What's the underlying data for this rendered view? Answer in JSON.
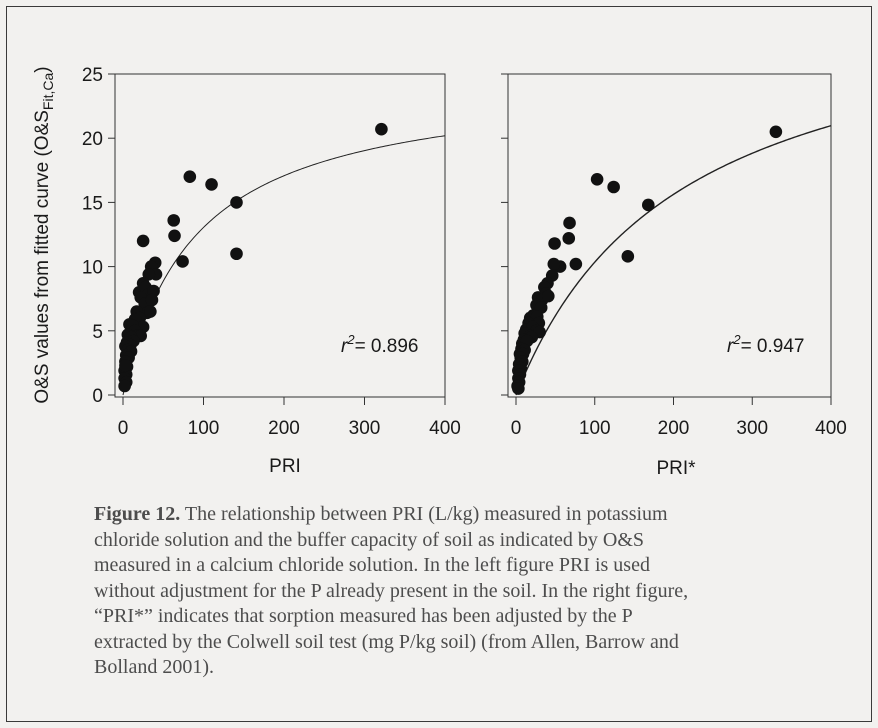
{
  "chart_data": [
    {
      "type": "scatter",
      "ylabel_main": "O&S values from fitted curve (O&S",
      "ylabel_sub": "Fit,Ca",
      "ylabel_close": ")",
      "xlabel": "PRI",
      "xlim": [
        0,
        400
      ],
      "ylim": [
        0,
        25
      ],
      "x_ticks": [
        "0",
        "100",
        "200",
        "300",
        "400"
      ],
      "y_ticks": [
        "0",
        "5",
        "10",
        "15",
        "20",
        "25"
      ],
      "r2_label": "= 0.896",
      "r2_symbol": "r",
      "r2_sup": "2",
      "points": [
        [
          321,
          20.7
        ],
        [
          83,
          17
        ],
        [
          110,
          16.4
        ],
        [
          141,
          15
        ],
        [
          63,
          13.6
        ],
        [
          64,
          12.4
        ],
        [
          25,
          12
        ],
        [
          74,
          10.4
        ],
        [
          141,
          11
        ],
        [
          40,
          10.3
        ],
        [
          35,
          10
        ],
        [
          41,
          9.4
        ],
        [
          32,
          9.4
        ],
        [
          25,
          8.7
        ],
        [
          20,
          8
        ],
        [
          28,
          8.4
        ],
        [
          31,
          7.8
        ],
        [
          38,
          8.1
        ],
        [
          22,
          7.6
        ],
        [
          27,
          7.1
        ],
        [
          36,
          7.4
        ],
        [
          30,
          6.4
        ],
        [
          34,
          6.5
        ],
        [
          17,
          6.5
        ],
        [
          20,
          6
        ],
        [
          15,
          5.9
        ],
        [
          25,
          5.3
        ],
        [
          8,
          5.5
        ],
        [
          12,
          5.4
        ],
        [
          15,
          5
        ],
        [
          17,
          4.6
        ],
        [
          22,
          4.6
        ],
        [
          6,
          4.7
        ],
        [
          10,
          4.5
        ],
        [
          13,
          4.2
        ],
        [
          5,
          4.1
        ],
        [
          9,
          3.9
        ],
        [
          3,
          3.8
        ],
        [
          6,
          3.5
        ],
        [
          10,
          3.4
        ],
        [
          4,
          3.1
        ],
        [
          7,
          2.9
        ],
        [
          3,
          2.6
        ],
        [
          5,
          2.2
        ],
        [
          2,
          1.9
        ],
        [
          4,
          1.6
        ],
        [
          2,
          1.3
        ],
        [
          4,
          1.0
        ],
        [
          2,
          0.7
        ],
        [
          3,
          2.3
        ]
      ],
      "curve": {
        "type": "langmuir",
        "a": 24.7,
        "b": 0.0112
      }
    },
    {
      "type": "scatter",
      "xlabel": "PRI*",
      "xlim": [
        0,
        400
      ],
      "ylim": [
        0,
        25
      ],
      "x_ticks": [
        "0",
        "100",
        "200",
        "300",
        "400"
      ],
      "r2_label": "= 0.947",
      "r2_symbol": "r",
      "r2_sup": "2",
      "points": [
        [
          330,
          20.5
        ],
        [
          103,
          16.8
        ],
        [
          124,
          16.2
        ],
        [
          168,
          14.8
        ],
        [
          68,
          13.4
        ],
        [
          67,
          12.2
        ],
        [
          49,
          11.8
        ],
        [
          142,
          10.8
        ],
        [
          76,
          10.2
        ],
        [
          56,
          10
        ],
        [
          48,
          10.2
        ],
        [
          46,
          9.3
        ],
        [
          40,
          8.7
        ],
        [
          36,
          8.4
        ],
        [
          38,
          7.9
        ],
        [
          28,
          7.6
        ],
        [
          33,
          7.4
        ],
        [
          41,
          7.7
        ],
        [
          26,
          7
        ],
        [
          32,
          6.8
        ],
        [
          22,
          6.2
        ],
        [
          18,
          6
        ],
        [
          27,
          6.1
        ],
        [
          29,
          5.6
        ],
        [
          16,
          5.6
        ],
        [
          13,
          5.1
        ],
        [
          21,
          5.3
        ],
        [
          26,
          5
        ],
        [
          11,
          4.8
        ],
        [
          18,
          4.6
        ],
        [
          30,
          4.9
        ],
        [
          10,
          4.3
        ],
        [
          20,
          4.5
        ],
        [
          8,
          4
        ],
        [
          14,
          4.2
        ],
        [
          7,
          3.6
        ],
        [
          11,
          3.5
        ],
        [
          5,
          3.2
        ],
        [
          9,
          3.2
        ],
        [
          6,
          2.9
        ],
        [
          8,
          2.6
        ],
        [
          4,
          2.4
        ],
        [
          6,
          2.1
        ],
        [
          3,
          1.9
        ],
        [
          5,
          1.6
        ],
        [
          3,
          1.3
        ],
        [
          4,
          1.0
        ],
        [
          2,
          0.7
        ],
        [
          3,
          0.5
        ]
      ],
      "curve": {
        "type": "langmuir",
        "a": 31.9,
        "b": 0.0048
      }
    }
  ],
  "caption": {
    "label": "Figure 12.",
    "lines": [
      " The relationship between PRI (L/kg) measured in potassium",
      "chloride solution and the buffer capacity of soil as indicated by O&S",
      "measured in a calcium chloride solution. In the left figure PRI is used",
      "without adjustment for the P already present in the soil. In the right figure,",
      "“PRI*” indicates that sorption measured has been adjusted by the P",
      "extracted by the Colwell soil test (mg P/kg soil) (from Allen, Barrow and",
      "Bolland 2001)."
    ]
  },
  "colors": {
    "background": "#f2f1ef",
    "points": "#111111",
    "curve": "#222222",
    "caption_text": "#4d4d4d"
  }
}
